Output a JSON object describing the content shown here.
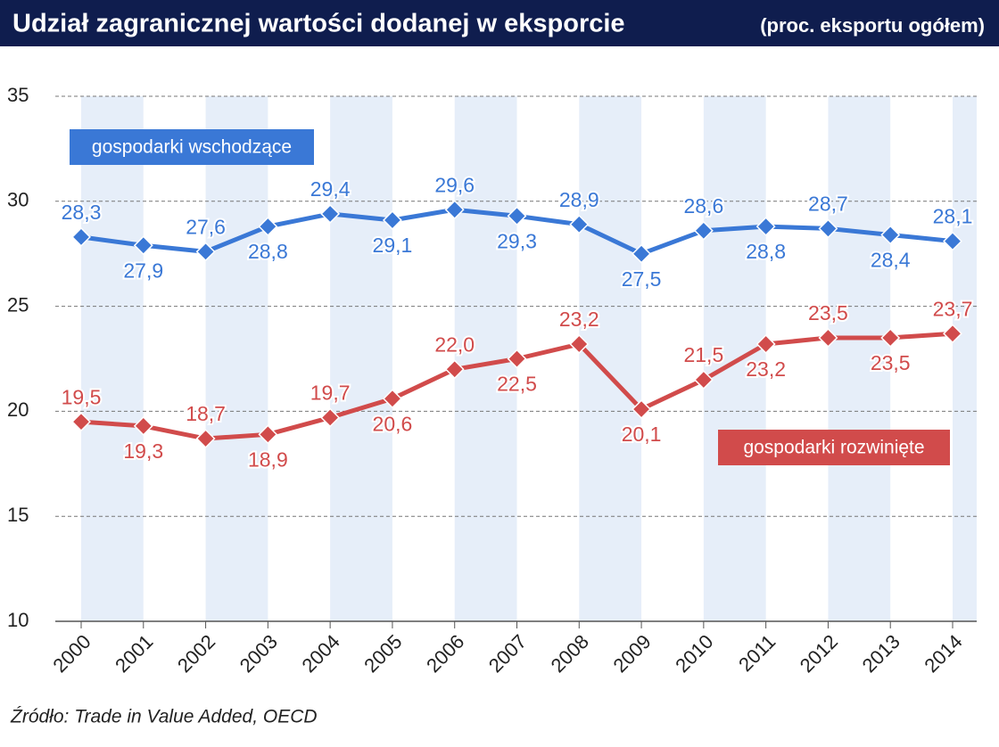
{
  "chart_data": {
    "type": "line",
    "title": "Udział zagranicznej wartości dodanej w eksporcie",
    "subtitle": "(proc. eksportu ogółem)",
    "source": "Źródło: Trade in Value Added, OECD",
    "categories": [
      "2000",
      "2001",
      "2002",
      "2003",
      "2004",
      "2005",
      "2006",
      "2007",
      "2008",
      "2009",
      "2010",
      "2011",
      "2012",
      "2013",
      "2014"
    ],
    "series": [
      {
        "name": "gospodarki wschodzące",
        "color": "#3a78d6",
        "values": [
          28.3,
          27.9,
          27.6,
          28.8,
          29.4,
          29.1,
          29.6,
          29.3,
          28.9,
          27.5,
          28.6,
          28.8,
          28.7,
          28.4,
          28.1
        ],
        "value_labels": [
          "28,3",
          "27,9",
          "27,6",
          "28,8",
          "29,4",
          "29,1",
          "29,6",
          "29,3",
          "28,9",
          "27,5",
          "28,6",
          "28,8",
          "28,7",
          "28,4",
          "28,1"
        ]
      },
      {
        "name": "gospodarki rozwinięte",
        "color": "#d14b4b",
        "values": [
          19.5,
          19.3,
          18.7,
          18.9,
          19.7,
          20.6,
          22.0,
          22.5,
          23.2,
          20.1,
          21.5,
          23.2,
          23.5,
          23.5,
          23.7
        ],
        "value_labels": [
          "19,5",
          "19,3",
          "18,7",
          "18,9",
          "19,7",
          "20,6",
          "22,0",
          "22,5",
          "23,2",
          "20,1",
          "21,5",
          "23,2",
          "23,5",
          "23,5",
          "23,7"
        ]
      }
    ],
    "ylim": [
      10,
      35
    ],
    "yticks": [
      10,
      15,
      20,
      25,
      30,
      35
    ],
    "grid": true
  }
}
